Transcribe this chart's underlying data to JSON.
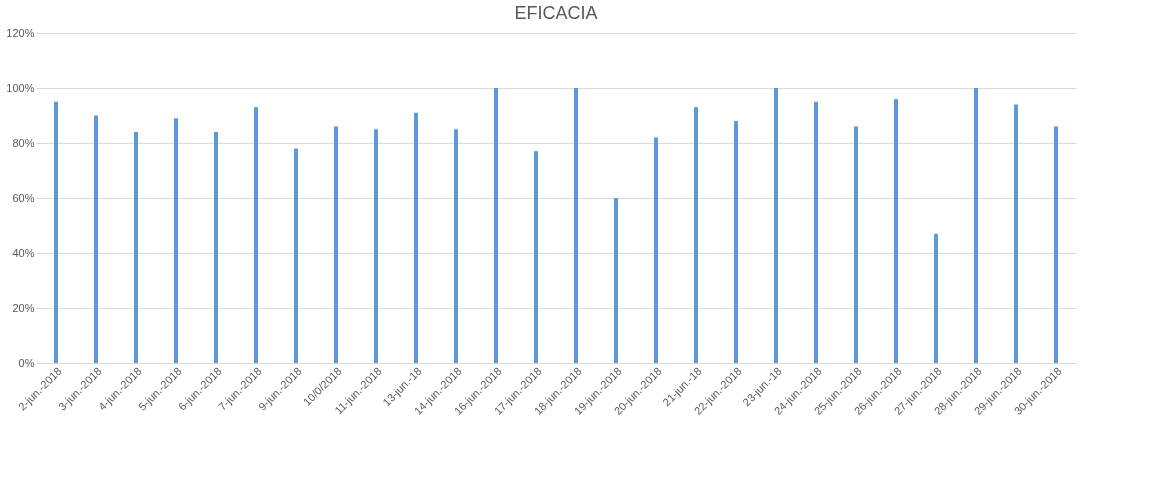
{
  "chart_data": {
    "type": "bar",
    "title": "EFICACIA",
    "categories": [
      "2-jun.-2018",
      "3-jun.-2018",
      "4-jun.-2018",
      "5-jun.-2018",
      "6-jun.-2018",
      "7-jun.-2018",
      "9-jun.-2018",
      "10/0/2018",
      "11-jun.-2018",
      "13-jun.-18",
      "14-jun.-2018",
      "16-jun.-2018",
      "17-jun.-2018",
      "18-jun.-2018",
      "19-jun.-2018",
      "20-jun.-2018",
      "21-jun.-18",
      "22-jun.-2018",
      "23-jun.-18",
      "24-jun.-2018",
      "25-jun.-2018",
      "26-jun.-2018",
      "27-jun.-2018",
      "28-jun.-2018",
      "29-jun.-2018",
      "30-jun.-2018"
    ],
    "series": [
      {
        "color": "#5b9bd5",
        "values": [
          95,
          90,
          84,
          89,
          84,
          93,
          78,
          86,
          85,
          91,
          85,
          100,
          77,
          100,
          60,
          82,
          93,
          88,
          100,
          95,
          86,
          96,
          47,
          100,
          94,
          86
        ]
      }
    ],
    "ylim": [
      0,
      120
    ],
    "yticks": [
      {
        "value": 0,
        "label": "0%"
      },
      {
        "value": 20,
        "label": "20%"
      },
      {
        "value": 40,
        "label": "40%"
      },
      {
        "value": 60,
        "label": "60%"
      },
      {
        "value": 80,
        "label": "80%"
      },
      {
        "value": 100,
        "label": "100%"
      },
      {
        "value": 120,
        "label": "120%"
      }
    ],
    "grid": "y",
    "legend": false
  }
}
